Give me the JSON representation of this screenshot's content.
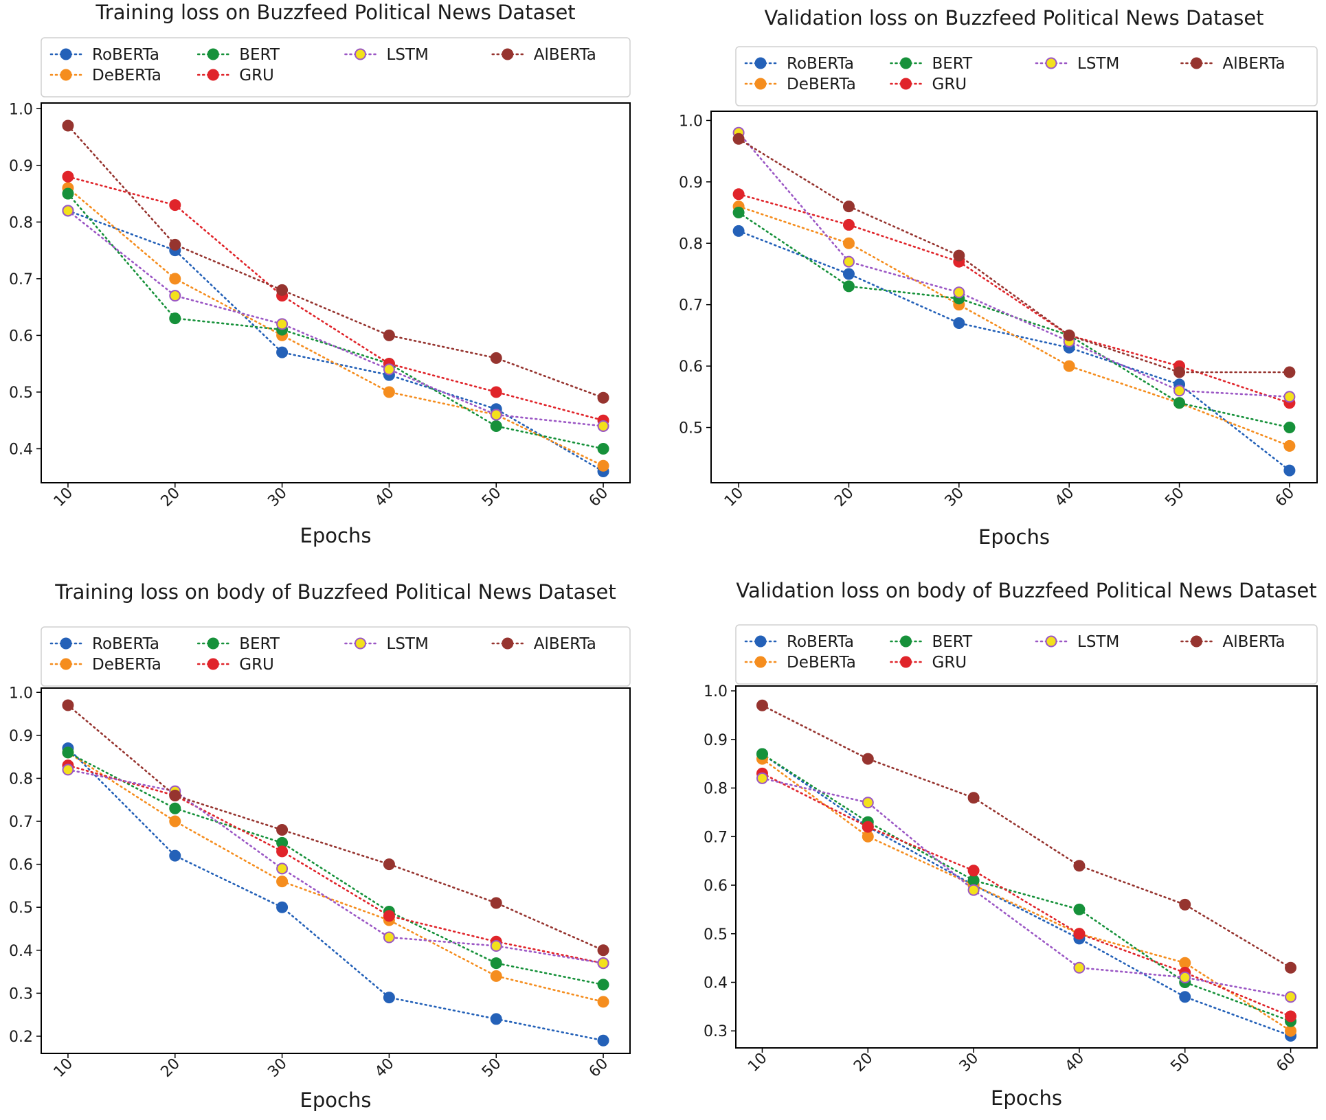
{
  "colors": {
    "RoBERTa": "#2461b8",
    "DeBERTa": "#f58d1e",
    "BERT": "#16913a",
    "GRU": "#e0242a",
    "LSTM": "#f3e11c",
    "LSTM_edge": "#9b57c5",
    "AlBERTa": "#96342f"
  },
  "chart_data": [
    {
      "type": "line",
      "title": "Training loss on Buzzfeed Political News Dataset",
      "xlabel": "Epochs",
      "ylabel": "",
      "x": [
        10,
        20,
        30,
        40,
        50,
        60
      ],
      "yticks": [
        0.4,
        0.5,
        0.6,
        0.7,
        0.8,
        0.9,
        1.0
      ],
      "ylim": [
        0.34,
        1.01
      ],
      "legend": "top",
      "series": [
        {
          "name": "RoBERTa",
          "values": [
            0.82,
            0.75,
            0.57,
            0.53,
            0.47,
            0.36
          ]
        },
        {
          "name": "DeBERTa",
          "values": [
            0.86,
            0.7,
            0.6,
            0.5,
            0.46,
            0.37
          ]
        },
        {
          "name": "BERT",
          "values": [
            0.85,
            0.63,
            0.61,
            0.55,
            0.44,
            0.4
          ]
        },
        {
          "name": "GRU",
          "values": [
            0.88,
            0.83,
            0.67,
            0.55,
            0.5,
            0.45
          ]
        },
        {
          "name": "LSTM",
          "values": [
            0.82,
            0.67,
            0.62,
            0.54,
            0.46,
            0.44
          ]
        },
        {
          "name": "AlBERTa",
          "values": [
            0.97,
            0.76,
            0.68,
            0.6,
            0.56,
            0.49
          ]
        }
      ]
    },
    {
      "type": "line",
      "title": "Validation loss on Buzzfeed Political News Dataset",
      "xlabel": "Epochs",
      "ylabel": "",
      "x": [
        10,
        20,
        30,
        40,
        50,
        60
      ],
      "yticks": [
        0.5,
        0.6,
        0.7,
        0.8,
        0.9,
        1.0
      ],
      "ylim": [
        0.41,
        1.015
      ],
      "legend": "top",
      "series": [
        {
          "name": "RoBERTa",
          "values": [
            0.82,
            0.75,
            0.67,
            0.63,
            0.57,
            0.43
          ]
        },
        {
          "name": "DeBERTa",
          "values": [
            0.86,
            0.8,
            0.7,
            0.6,
            0.54,
            0.47
          ]
        },
        {
          "name": "BERT",
          "values": [
            0.85,
            0.73,
            0.71,
            0.65,
            0.54,
            0.5
          ]
        },
        {
          "name": "GRU",
          "values": [
            0.88,
            0.83,
            0.77,
            0.65,
            0.6,
            0.54
          ]
        },
        {
          "name": "LSTM",
          "values": [
            0.98,
            0.77,
            0.72,
            0.64,
            0.56,
            0.55
          ]
        },
        {
          "name": "AlBERTa",
          "values": [
            0.97,
            0.86,
            0.78,
            0.65,
            0.59,
            0.59
          ]
        }
      ]
    },
    {
      "type": "line",
      "title": "Training loss on body of Buzzfeed Political News Dataset",
      "xlabel": "Epochs",
      "ylabel": "",
      "x": [
        10,
        20,
        30,
        40,
        50,
        60
      ],
      "yticks": [
        0.2,
        0.3,
        0.4,
        0.5,
        0.6,
        0.7,
        0.8,
        0.9,
        1.0
      ],
      "ylim": [
        0.16,
        1.01
      ],
      "legend": "top",
      "series": [
        {
          "name": "RoBERTa",
          "values": [
            0.87,
            0.62,
            0.5,
            0.29,
            0.24,
            0.19
          ]
        },
        {
          "name": "DeBERTa",
          "values": [
            0.86,
            0.7,
            0.56,
            0.47,
            0.34,
            0.28
          ]
        },
        {
          "name": "BERT",
          "values": [
            0.86,
            0.73,
            0.65,
            0.49,
            0.37,
            0.32
          ]
        },
        {
          "name": "GRU",
          "values": [
            0.83,
            0.76,
            0.63,
            0.48,
            0.42,
            0.37
          ]
        },
        {
          "name": "LSTM",
          "values": [
            0.82,
            0.77,
            0.59,
            0.43,
            0.41,
            0.37
          ]
        },
        {
          "name": "AlBERTa",
          "values": [
            0.97,
            0.76,
            0.68,
            0.6,
            0.51,
            0.4
          ]
        }
      ]
    },
    {
      "type": "line",
      "title": "Validation loss on body of Buzzfeed Political News Dataset",
      "xlabel": "Epochs",
      "ylabel": "",
      "x": [
        10,
        20,
        30,
        40,
        50,
        60
      ],
      "yticks": [
        0.3,
        0.4,
        0.5,
        0.6,
        0.7,
        0.8,
        0.9,
        1.0
      ],
      "ylim": [
        0.265,
        1.01
      ],
      "legend": "top",
      "series": [
        {
          "name": "RoBERTa",
          "values": [
            0.87,
            0.72,
            0.6,
            0.49,
            0.37,
            0.29
          ]
        },
        {
          "name": "DeBERTa",
          "values": [
            0.86,
            0.7,
            0.6,
            0.5,
            0.44,
            0.3
          ]
        },
        {
          "name": "BERT",
          "values": [
            0.87,
            0.73,
            0.61,
            0.55,
            0.4,
            0.32
          ]
        },
        {
          "name": "GRU",
          "values": [
            0.83,
            0.72,
            0.63,
            0.5,
            0.42,
            0.33
          ]
        },
        {
          "name": "LSTM",
          "values": [
            0.82,
            0.77,
            0.59,
            0.43,
            0.41,
            0.37
          ]
        },
        {
          "name": "AlBERTa",
          "values": [
            0.97,
            0.86,
            0.78,
            0.64,
            0.56,
            0.43
          ]
        }
      ]
    }
  ]
}
